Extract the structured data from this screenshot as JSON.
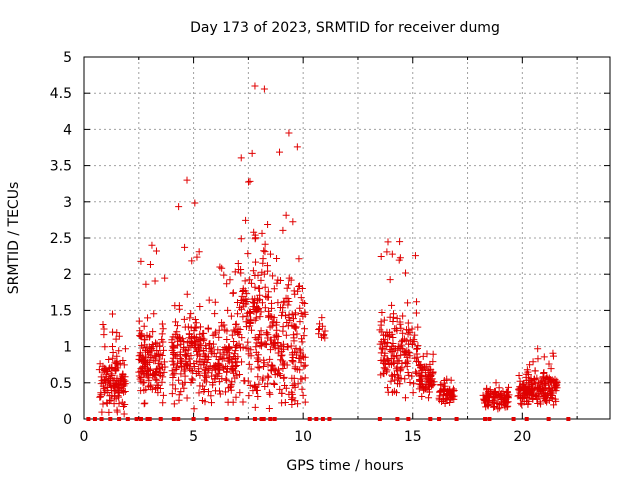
{
  "chart_data": {
    "type": "scatter",
    "title": "Day 173 of 2023, SRMTID for receiver dumg",
    "xlabel": "GPS time / hours",
    "ylabel": "SRMTID / TECUs",
    "xlim": [
      0,
      24
    ],
    "ylim": [
      0,
      5
    ],
    "grid": true,
    "marker": "plus",
    "color": "#e00000",
    "x_ticks": [
      {
        "value": 0,
        "label": "0"
      },
      {
        "value": 5,
        "label": "5"
      },
      {
        "value": 10,
        "label": "10"
      },
      {
        "value": 15,
        "label": "15"
      },
      {
        "value": 20,
        "label": "20"
      }
    ],
    "x_minor_ticks": [
      2.5,
      7.5,
      12.5,
      17.5,
      22.5
    ],
    "y_ticks": [
      {
        "value": 0,
        "label": "0"
      },
      {
        "value": 0.5,
        "label": "0.5"
      },
      {
        "value": 1,
        "label": "1"
      },
      {
        "value": 1.5,
        "label": "1.5"
      },
      {
        "value": 2,
        "label": "2"
      },
      {
        "value": 2.5,
        "label": "2.5"
      },
      {
        "value": 3,
        "label": "3"
      },
      {
        "value": 3.5,
        "label": "3.5"
      },
      {
        "value": 4,
        "label": "4"
      },
      {
        "value": 4.5,
        "label": "4.5"
      },
      {
        "value": 5,
        "label": "5"
      }
    ],
    "clusters": [
      {
        "x_start": 0.7,
        "x_end": 1.9,
        "n": 140,
        "y_base": 0.5,
        "y_spread": 0.35,
        "y_max": 1.45
      },
      {
        "x_start": 2.5,
        "x_end": 3.7,
        "n": 150,
        "y_base": 0.75,
        "y_spread": 0.5,
        "y_max": 2.4
      },
      {
        "x_start": 4.0,
        "x_end": 5.4,
        "n": 160,
        "y_base": 0.9,
        "y_spread": 0.5,
        "y_max": 3.3
      },
      {
        "x_start": 5.4,
        "x_end": 7.0,
        "n": 170,
        "y_base": 0.8,
        "y_spread": 0.5,
        "y_max": 2.1
      },
      {
        "x_start": 7.0,
        "x_end": 8.6,
        "n": 200,
        "y_base": 1.2,
        "y_spread": 1.0,
        "y_max": 4.6
      },
      {
        "x_start": 8.6,
        "x_end": 10.1,
        "n": 170,
        "y_base": 1.0,
        "y_spread": 0.8,
        "y_max": 3.95
      },
      {
        "x_start": 10.7,
        "x_end": 11.0,
        "n": 10,
        "y_base": 1.2,
        "y_spread": 0.1,
        "y_max": 1.4
      },
      {
        "x_start": 13.5,
        "x_end": 15.3,
        "n": 170,
        "y_base": 0.9,
        "y_spread": 0.5,
        "y_max": 2.45
      },
      {
        "x_start": 15.3,
        "x_end": 16.0,
        "n": 70,
        "y_base": 0.55,
        "y_spread": 0.2,
        "y_max": 0.9
      },
      {
        "x_start": 16.2,
        "x_end": 16.9,
        "n": 60,
        "y_base": 0.35,
        "y_spread": 0.12,
        "y_max": 0.55
      },
      {
        "x_start": 18.2,
        "x_end": 19.4,
        "n": 90,
        "y_base": 0.28,
        "y_spread": 0.12,
        "y_max": 0.5
      },
      {
        "x_start": 19.8,
        "x_end": 21.6,
        "n": 200,
        "y_base": 0.4,
        "y_spread": 0.2,
        "y_max": 0.97
      }
    ],
    "zero_points": [
      0.2,
      0.5,
      0.8,
      1.2,
      1.6,
      2.0,
      2.4,
      2.6,
      2.9,
      3.0,
      3.5,
      4.1,
      4.3,
      5.0,
      5.6,
      6.5,
      7.0,
      7.8,
      8.1,
      8.2,
      8.5,
      8.7,
      10.3,
      10.6,
      10.9,
      11.2,
      13.5,
      14.3,
      14.8,
      15.8,
      16.2,
      17.0,
      18.3,
      18.5,
      19.6,
      20.2,
      21.2,
      22.1
    ]
  }
}
